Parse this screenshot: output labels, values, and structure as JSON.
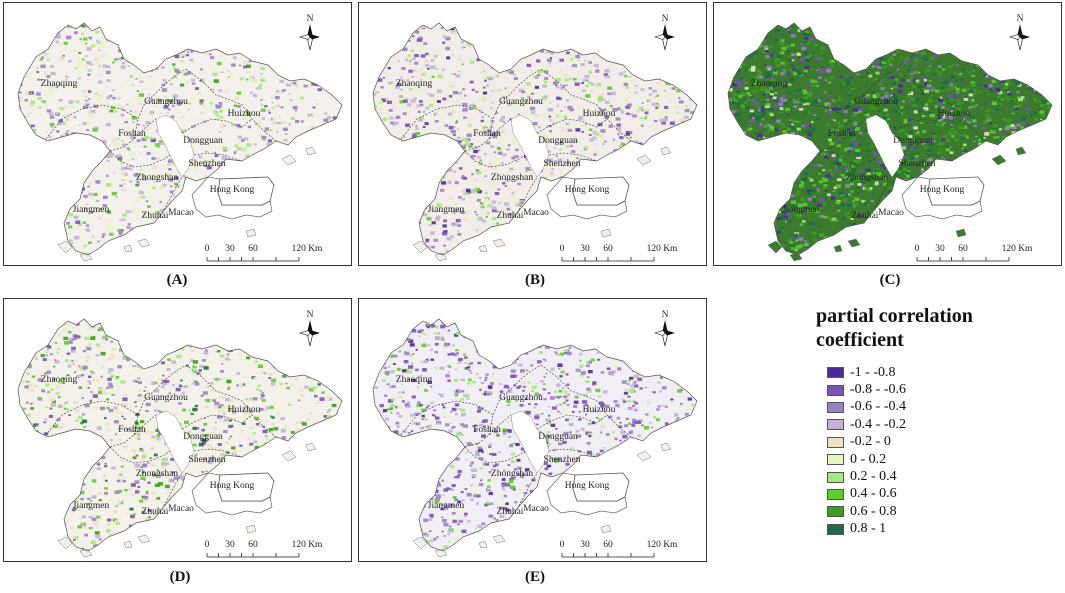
{
  "panels": [
    {
      "label": "(A)",
      "scheme": "A"
    },
    {
      "label": "(B)",
      "scheme": "B"
    },
    {
      "label": "(C)",
      "scheme": "C"
    },
    {
      "label": "(D)",
      "scheme": "D"
    },
    {
      "label": "(E)",
      "scheme": "E"
    }
  ],
  "cities": [
    "Zhaoqing",
    "Guangzhou",
    "Huizhou",
    "Foshan",
    "Dongguan",
    "Shenzhen",
    "Zhongshan",
    "Jiangmen",
    "Zhuhai",
    "Macao",
    "Hong Kong"
  ],
  "north_label": "N",
  "scale_bar": {
    "ticks": [
      "0",
      "30",
      "60",
      "120 Km"
    ]
  },
  "legend": {
    "title": "partial correlation coefficient",
    "classes": [
      {
        "label": "-1 - -0.8",
        "color": "#4b2a99"
      },
      {
        "label": "-0.8 - -0.6",
        "color": "#7a52b3"
      },
      {
        "label": "-0.6 - -0.4",
        "color": "#9d7fc4"
      },
      {
        "label": "-0.4 - -0.2",
        "color": "#c3b1d6"
      },
      {
        "label": "-0.2 - 0",
        "color": "#ece1c8"
      },
      {
        "label": "0 - 0.2",
        "color": "#e4f5bd"
      },
      {
        "label": "0.2 - 0.4",
        "color": "#a6e87e"
      },
      {
        "label": "0.4 - 0.6",
        "color": "#5fcc2e"
      },
      {
        "label": "0.6 - 0.8",
        "color": "#3a9e1e"
      },
      {
        "label": "0.8 - 1",
        "color": "#1d6b49"
      }
    ]
  }
}
